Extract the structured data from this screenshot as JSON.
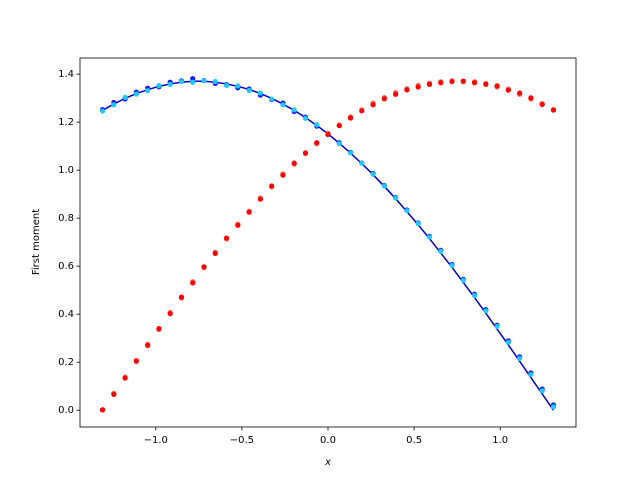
{
  "chart_data": {
    "type": "line",
    "xlabel": "x",
    "ylabel": "First moment",
    "x": [
      -1.309,
      -1.2436,
      -1.1781,
      -1.1127,
      -1.0472,
      -0.9818,
      -0.9163,
      -0.8509,
      -0.7854,
      -0.72,
      -0.6545,
      -0.5891,
      -0.5236,
      -0.4581,
      -0.3927,
      -0.3272,
      -0.2618,
      -0.1963,
      -0.1309,
      -0.0654,
      0,
      0.0654,
      0.1309,
      0.1963,
      0.2618,
      0.3272,
      0.3927,
      0.4581,
      0.5236,
      0.5891,
      0.6545,
      0.72,
      0.7854,
      0.8509,
      0.9163,
      0.9818,
      1.0472,
      1.1127,
      1.1781,
      1.2436,
      1.309
    ],
    "series": [
      {
        "style": "line",
        "color": "#0000cd",
        "values": [
          1.249,
          1.275,
          1.299,
          1.319,
          1.335,
          1.349,
          1.359,
          1.366,
          1.37,
          1.37,
          1.366,
          1.359,
          1.349,
          1.336,
          1.319,
          1.299,
          1.275,
          1.249,
          1.219,
          1.186,
          1.151,
          1.112,
          1.071,
          1.027,
          0.981,
          0.932,
          0.881,
          0.827,
          0.772,
          0.715,
          0.655,
          0.595,
          0.532,
          0.469,
          0.404,
          0.338,
          0.272,
          0.204,
          0.136,
          0.068,
          0
        ]
      },
      {
        "style": "dots",
        "color": "#1a1aff",
        "values": [
          1.252,
          1.282,
          1.296,
          1.325,
          1.341,
          1.347,
          1.366,
          1.372,
          1.381,
          1.373,
          1.361,
          1.356,
          1.343,
          1.338,
          1.312,
          1.294,
          1.279,
          1.244,
          1.221,
          1.183,
          1.148,
          1.114,
          1.074,
          1.03,
          0.986,
          0.936,
          0.886,
          0.834,
          0.78,
          0.724,
          0.666,
          0.607,
          0.545,
          0.483,
          0.419,
          0.354,
          0.289,
          0.222,
          0.155,
          0.088,
          0.022
        ]
      },
      {
        "style": "dots",
        "color": "#1fc8ff",
        "values": [
          1.246,
          1.272,
          1.303,
          1.317,
          1.331,
          1.352,
          1.357,
          1.369,
          1.366,
          1.372,
          1.369,
          1.353,
          1.351,
          1.332,
          1.321,
          1.296,
          1.272,
          1.251,
          1.216,
          1.189,
          1.153,
          1.11,
          1.072,
          1.029,
          0.983,
          0.934,
          0.884,
          0.831,
          0.777,
          0.721,
          0.662,
          0.603,
          0.541,
          0.478,
          0.414,
          0.349,
          0.283,
          0.216,
          0.149,
          0.081,
          0.014
        ]
      },
      {
        "style": "dots",
        "color": "#f26b5e",
        "values": [
          0,
          0.07,
          0.138,
          0.202,
          0.275,
          0.336,
          0.407,
          0.467,
          0.535,
          0.593,
          0.658,
          0.713,
          0.775,
          0.829,
          0.884,
          0.93,
          0.984,
          1.025,
          1.073,
          1.11,
          1.153,
          1.188,
          1.222,
          1.251,
          1.279,
          1.302,
          1.323,
          1.339,
          1.353,
          1.362,
          1.368,
          1.372,
          1.368,
          1.368,
          1.361,
          1.346,
          1.338,
          1.316,
          1.296,
          1.277,
          1.252
        ]
      },
      {
        "style": "dots",
        "color": "#ff0000",
        "values": [
          0.002,
          0.066,
          0.134,
          0.206,
          0.27,
          0.34,
          0.402,
          0.471,
          0.53,
          0.597,
          0.653,
          0.717,
          0.77,
          0.825,
          0.879,
          0.934,
          0.979,
          1.029,
          1.07,
          1.114,
          1.149,
          1.185,
          1.217,
          1.247,
          1.272,
          1.297,
          1.316,
          1.334,
          1.346,
          1.357,
          1.364,
          1.369,
          1.371,
          1.364,
          1.357,
          1.351,
          1.333,
          1.321,
          1.301,
          1.273,
          1.25
        ]
      }
    ],
    "xlim": [
      -1.44,
      1.44
    ],
    "xticks": [
      {
        "value": -1,
        "label": "−1.0"
      },
      {
        "value": -0.5,
        "label": "−0.5"
      },
      {
        "value": 0,
        "label": "0.0"
      },
      0.5,
      {
        "value": 1,
        "label": "1.0"
      }
    ],
    "ylim": [
      -0.07,
      1.467
    ],
    "yticks": [
      {
        "value": 0,
        "label": "0.0"
      },
      0.2,
      0.4,
      0.6,
      0.8,
      {
        "value": 1,
        "label": "1.0"
      },
      1.2,
      1.4
    ]
  }
}
